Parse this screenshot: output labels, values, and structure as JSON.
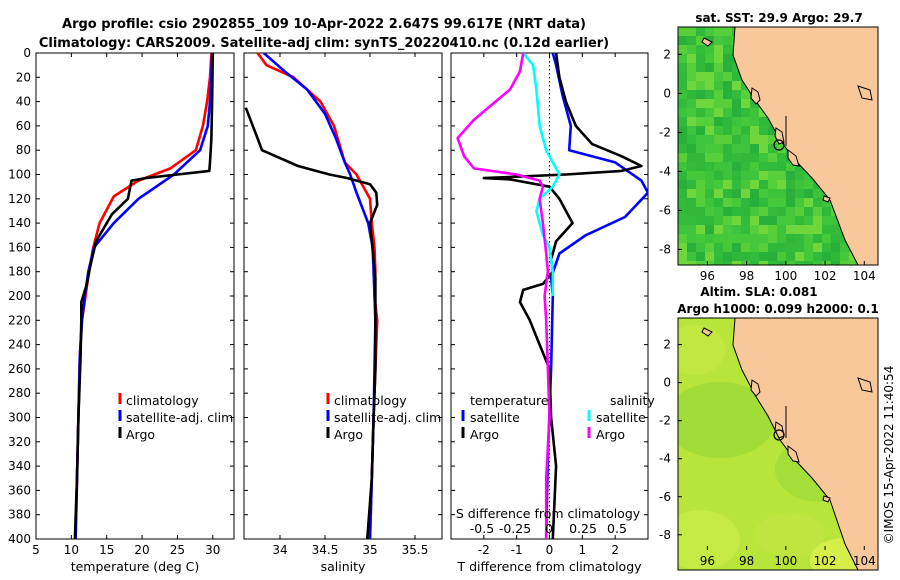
{
  "header": {
    "line1": "Argo profile: csio 2902855_109 10-Apr-2022 2.647S 99.617E (NRT data)",
    "line2": "Climatology: CARS2009. Satellite-adj clim: synTS_20220410.nc (0.12d earlier)"
  },
  "credit": "©IMOS 15-Apr-2022 11:40:54",
  "colors": {
    "climatology": "#ff0000",
    "satellite": "#0000ff",
    "argo": "#000000",
    "sat_s": "#00ffff",
    "argo_s": "#ff00ff",
    "land": "#f8c79a"
  },
  "chart_data": [
    {
      "type": "line",
      "panel": "temperature",
      "xlabel": "temperature (deg C)",
      "xlim": [
        5,
        33
      ],
      "ylim": [
        400,
        0
      ],
      "xticks": [
        5,
        10,
        15,
        20,
        25,
        30
      ],
      "yticks": [
        0,
        20,
        40,
        60,
        80,
        100,
        120,
        140,
        160,
        180,
        200,
        220,
        240,
        260,
        280,
        300,
        320,
        340,
        360,
        380,
        400
      ],
      "legend": [
        "climatology",
        "satellite-adj. clim",
        "Argo"
      ],
      "series": [
        {
          "name": "climatology",
          "color": "#ff0000",
          "points": [
            [
              29.8,
              0
            ],
            [
              29.6,
              20
            ],
            [
              29.2,
              40
            ],
            [
              28.6,
              60
            ],
            [
              27.6,
              80
            ],
            [
              24,
              95
            ],
            [
              19.5,
              105
            ],
            [
              16,
              118
            ],
            [
              14,
              140
            ],
            [
              13.1,
              160
            ],
            [
              12.5,
              180
            ],
            [
              12,
              200
            ],
            [
              11.5,
              220
            ],
            [
              11.2,
              250
            ],
            [
              11,
              300
            ],
            [
              10.8,
              350
            ],
            [
              10.6,
              400
            ]
          ]
        },
        {
          "name": "satellite-adj. clim",
          "color": "#0000ff",
          "points": [
            [
              29.9,
              0
            ],
            [
              29.8,
              20
            ],
            [
              29.6,
              40
            ],
            [
              29.3,
              60
            ],
            [
              28.2,
              80
            ],
            [
              24.5,
              100
            ],
            [
              19.5,
              120
            ],
            [
              16,
              140
            ],
            [
              13.2,
              160
            ],
            [
              12.4,
              180
            ],
            [
              11.9,
              200
            ],
            [
              11.5,
              220
            ],
            [
              11.2,
              250
            ],
            [
              11,
              300
            ],
            [
              10.8,
              350
            ],
            [
              10.6,
              400
            ]
          ]
        },
        {
          "name": "Argo",
          "color": "#000000",
          "points": [
            [
              30,
              0
            ],
            [
              29.9,
              40
            ],
            [
              29.8,
              70
            ],
            [
              29.6,
              90
            ],
            [
              29.5,
              97
            ],
            [
              25,
              100
            ],
            [
              20.5,
              103
            ],
            [
              18.5,
              105
            ],
            [
              18,
              120
            ],
            [
              15.7,
              133
            ],
            [
              13.5,
              155
            ],
            [
              12.7,
              175
            ],
            [
              12.2,
              190
            ],
            [
              11.4,
              205
            ],
            [
              11.4,
              220
            ],
            [
              11.3,
              250
            ],
            [
              11,
              300
            ],
            [
              10.8,
              350
            ],
            [
              10.5,
              400
            ]
          ]
        }
      ]
    },
    {
      "type": "line",
      "panel": "salinity",
      "xlabel": "salinity",
      "xlim": [
        33.6,
        35.8
      ],
      "ylim": [
        400,
        0
      ],
      "xticks": [
        34,
        34.5,
        35,
        35.5
      ],
      "yticks": [
        0,
        20,
        40,
        60,
        80,
        100,
        120,
        140,
        160,
        180,
        200,
        220,
        240,
        260,
        280,
        300,
        320,
        340,
        360,
        380,
        400
      ],
      "legend": [
        "climatology",
        "satellite-adj. clim",
        "Argo"
      ],
      "series": [
        {
          "name": "climatology",
          "color": "#ff0000",
          "points": [
            [
              33.75,
              0
            ],
            [
              33.85,
              10
            ],
            [
              34.15,
              20
            ],
            [
              34.45,
              40
            ],
            [
              34.6,
              60
            ],
            [
              34.68,
              80
            ],
            [
              34.72,
              90
            ],
            [
              34.85,
              100
            ],
            [
              35,
              120
            ],
            [
              35.02,
              140
            ],
            [
              35.05,
              160
            ],
            [
              35.06,
              180
            ],
            [
              35.05,
              200
            ],
            [
              35.08,
              220
            ],
            [
              35.06,
              260
            ],
            [
              35.04,
              300
            ],
            [
              35.02,
              350
            ],
            [
              35,
              400
            ]
          ]
        },
        {
          "name": "satellite-adj. clim",
          "color": "#0000ff",
          "points": [
            [
              33.82,
              0
            ],
            [
              34.05,
              15
            ],
            [
              34.3,
              30
            ],
            [
              34.5,
              50
            ],
            [
              34.62,
              70
            ],
            [
              34.72,
              90
            ],
            [
              34.78,
              100
            ],
            [
              34.85,
              115
            ],
            [
              34.98,
              140
            ],
            [
              35.03,
              160
            ],
            [
              35.05,
              200
            ],
            [
              35.06,
              220
            ],
            [
              35.05,
              260
            ],
            [
              35.04,
              300
            ],
            [
              35.02,
              350
            ],
            [
              35,
              400
            ]
          ]
        },
        {
          "name": "Argo",
          "color": "#000000",
          "points": [
            [
              33.62,
              45
            ],
            [
              33.75,
              70
            ],
            [
              33.8,
              80
            ],
            [
              34.2,
              93
            ],
            [
              34.55,
              100
            ],
            [
              34.75,
              103
            ],
            [
              35,
              108
            ],
            [
              35.07,
              115
            ],
            [
              35.08,
              125
            ],
            [
              35,
              140
            ],
            [
              35.02,
              155
            ],
            [
              35.04,
              170
            ],
            [
              35.06,
              185
            ],
            [
              35.06,
              200
            ],
            [
              35.06,
              220
            ],
            [
              35.06,
              260
            ],
            [
              35.04,
              300
            ],
            [
              35.02,
              350
            ],
            [
              34.97,
              400
            ]
          ]
        }
      ]
    },
    {
      "type": "line",
      "panel": "difference",
      "xlabel": "T difference from climatology",
      "secondary_xlabel": "S difference from climatology",
      "xlim": [
        -3,
        3
      ],
      "ylim": [
        400,
        0
      ],
      "xticks": [
        -2,
        -1,
        0,
        1,
        2
      ],
      "secondary_xticks": [
        "-0.5",
        "-0.25",
        "0",
        "0.25",
        "0.5"
      ],
      "yticks": [
        0,
        20,
        40,
        60,
        80,
        100,
        120,
        140,
        160,
        180,
        200,
        220,
        240,
        260,
        280,
        300,
        320,
        340,
        360,
        380,
        400
      ],
      "legend_left_title": "temperature",
      "legend_right_title": "salinity",
      "legend": [
        "satellite",
        "Argo",
        "satellite",
        "Argo"
      ],
      "series": [
        {
          "name": "temperature satellite",
          "color": "#0000ff",
          "points": [
            [
              0.1,
              0
            ],
            [
              0.2,
              10
            ],
            [
              0.4,
              35
            ],
            [
              0.65,
              60
            ],
            [
              0.6,
              80
            ],
            [
              2,
              90
            ],
            [
              2.8,
              105
            ],
            [
              3,
              115
            ],
            [
              2.3,
              135
            ],
            [
              1.1,
              150
            ],
            [
              0.3,
              165
            ],
            [
              0.05,
              185
            ],
            [
              0.1,
              200
            ],
            [
              0.05,
              260
            ],
            [
              -0.05,
              330
            ],
            [
              -0.1,
              400
            ]
          ]
        },
        {
          "name": "temperature Argo",
          "color": "#000000",
          "points": [
            [
              0.2,
              0
            ],
            [
              0.3,
              20
            ],
            [
              0.5,
              40
            ],
            [
              0.8,
              60
            ],
            [
              1.3,
              75
            ],
            [
              2.2,
              85
            ],
            [
              2.8,
              93
            ],
            [
              2.2,
              97
            ],
            [
              0.5,
              100
            ],
            [
              -2,
              103
            ],
            [
              -1.2,
              104
            ],
            [
              0,
              110
            ],
            [
              0.3,
              120
            ],
            [
              0.7,
              140
            ],
            [
              0.2,
              155
            ],
            [
              0.05,
              170
            ],
            [
              0.1,
              180
            ],
            [
              -0.2,
              190
            ],
            [
              -0.8,
              195
            ],
            [
              -0.9,
              205
            ],
            [
              -0.6,
              220
            ],
            [
              -0.3,
              240
            ],
            [
              0,
              260
            ],
            [
              0.05,
              300
            ],
            [
              0.2,
              340
            ],
            [
              0.1,
              400
            ]
          ]
        },
        {
          "name": "salinity satellite",
          "color": "#00ffff",
          "points": [
            [
              -0.8,
              0
            ],
            [
              -0.5,
              10
            ],
            [
              -0.4,
              30
            ],
            [
              -0.3,
              60
            ],
            [
              -0.1,
              80
            ],
            [
              0.3,
              100
            ],
            [
              0.1,
              110
            ],
            [
              -0.3,
              120
            ],
            [
              -0.4,
              130
            ],
            [
              -0.2,
              150
            ],
            [
              0,
              160
            ],
            [
              0.1,
              180
            ],
            [
              0.1,
              200
            ]
          ]
        },
        {
          "name": "salinity Argo",
          "color": "#ff00ff",
          "points": [
            [
              -0.8,
              0
            ],
            [
              -0.9,
              15
            ],
            [
              -1.2,
              30
            ],
            [
              -2.3,
              55
            ],
            [
              -2.8,
              70
            ],
            [
              -2.6,
              85
            ],
            [
              -2.3,
              95
            ],
            [
              -1,
              100
            ],
            [
              -0.3,
              105
            ],
            [
              -0.2,
              110
            ],
            [
              -0.3,
              120
            ],
            [
              -0.2,
              140
            ],
            [
              -0.1,
              165
            ],
            [
              -0.05,
              180
            ],
            [
              -0.1,
              190
            ],
            [
              -0.15,
              200
            ],
            [
              -0.1,
              220
            ],
            [
              -0.05,
              260
            ],
            [
              0,
              300
            ],
            [
              -0.1,
              350
            ],
            [
              -0.1,
              400
            ]
          ]
        }
      ]
    },
    {
      "type": "heatmap",
      "panel": "sst_map",
      "title": "sat. SST: 29.9 Argo: 29.7",
      "xlim": [
        94.5,
        104.7
      ],
      "ylim": [
        -8.8,
        3.4
      ],
      "xticks": [
        96,
        98,
        100,
        102,
        104
      ],
      "yticks": [
        2,
        0,
        -2,
        -4,
        -6,
        -8
      ],
      "argo_position": [
        99.617,
        -2.647
      ]
    },
    {
      "type": "heatmap",
      "panel": "sla_map",
      "title_line1": "Altim. SLA: 0.081",
      "title_line2": "Argo h1000: 0.099 h2000: 0.1",
      "xlim": [
        94.5,
        104.7
      ],
      "ylim": [
        -8.8,
        3.4
      ],
      "xticks": [
        96,
        98,
        100,
        102,
        104
      ],
      "yticks": [
        2,
        0,
        -2,
        -4,
        -6,
        -8
      ],
      "argo_position": [
        99.617,
        -2.647
      ]
    }
  ]
}
